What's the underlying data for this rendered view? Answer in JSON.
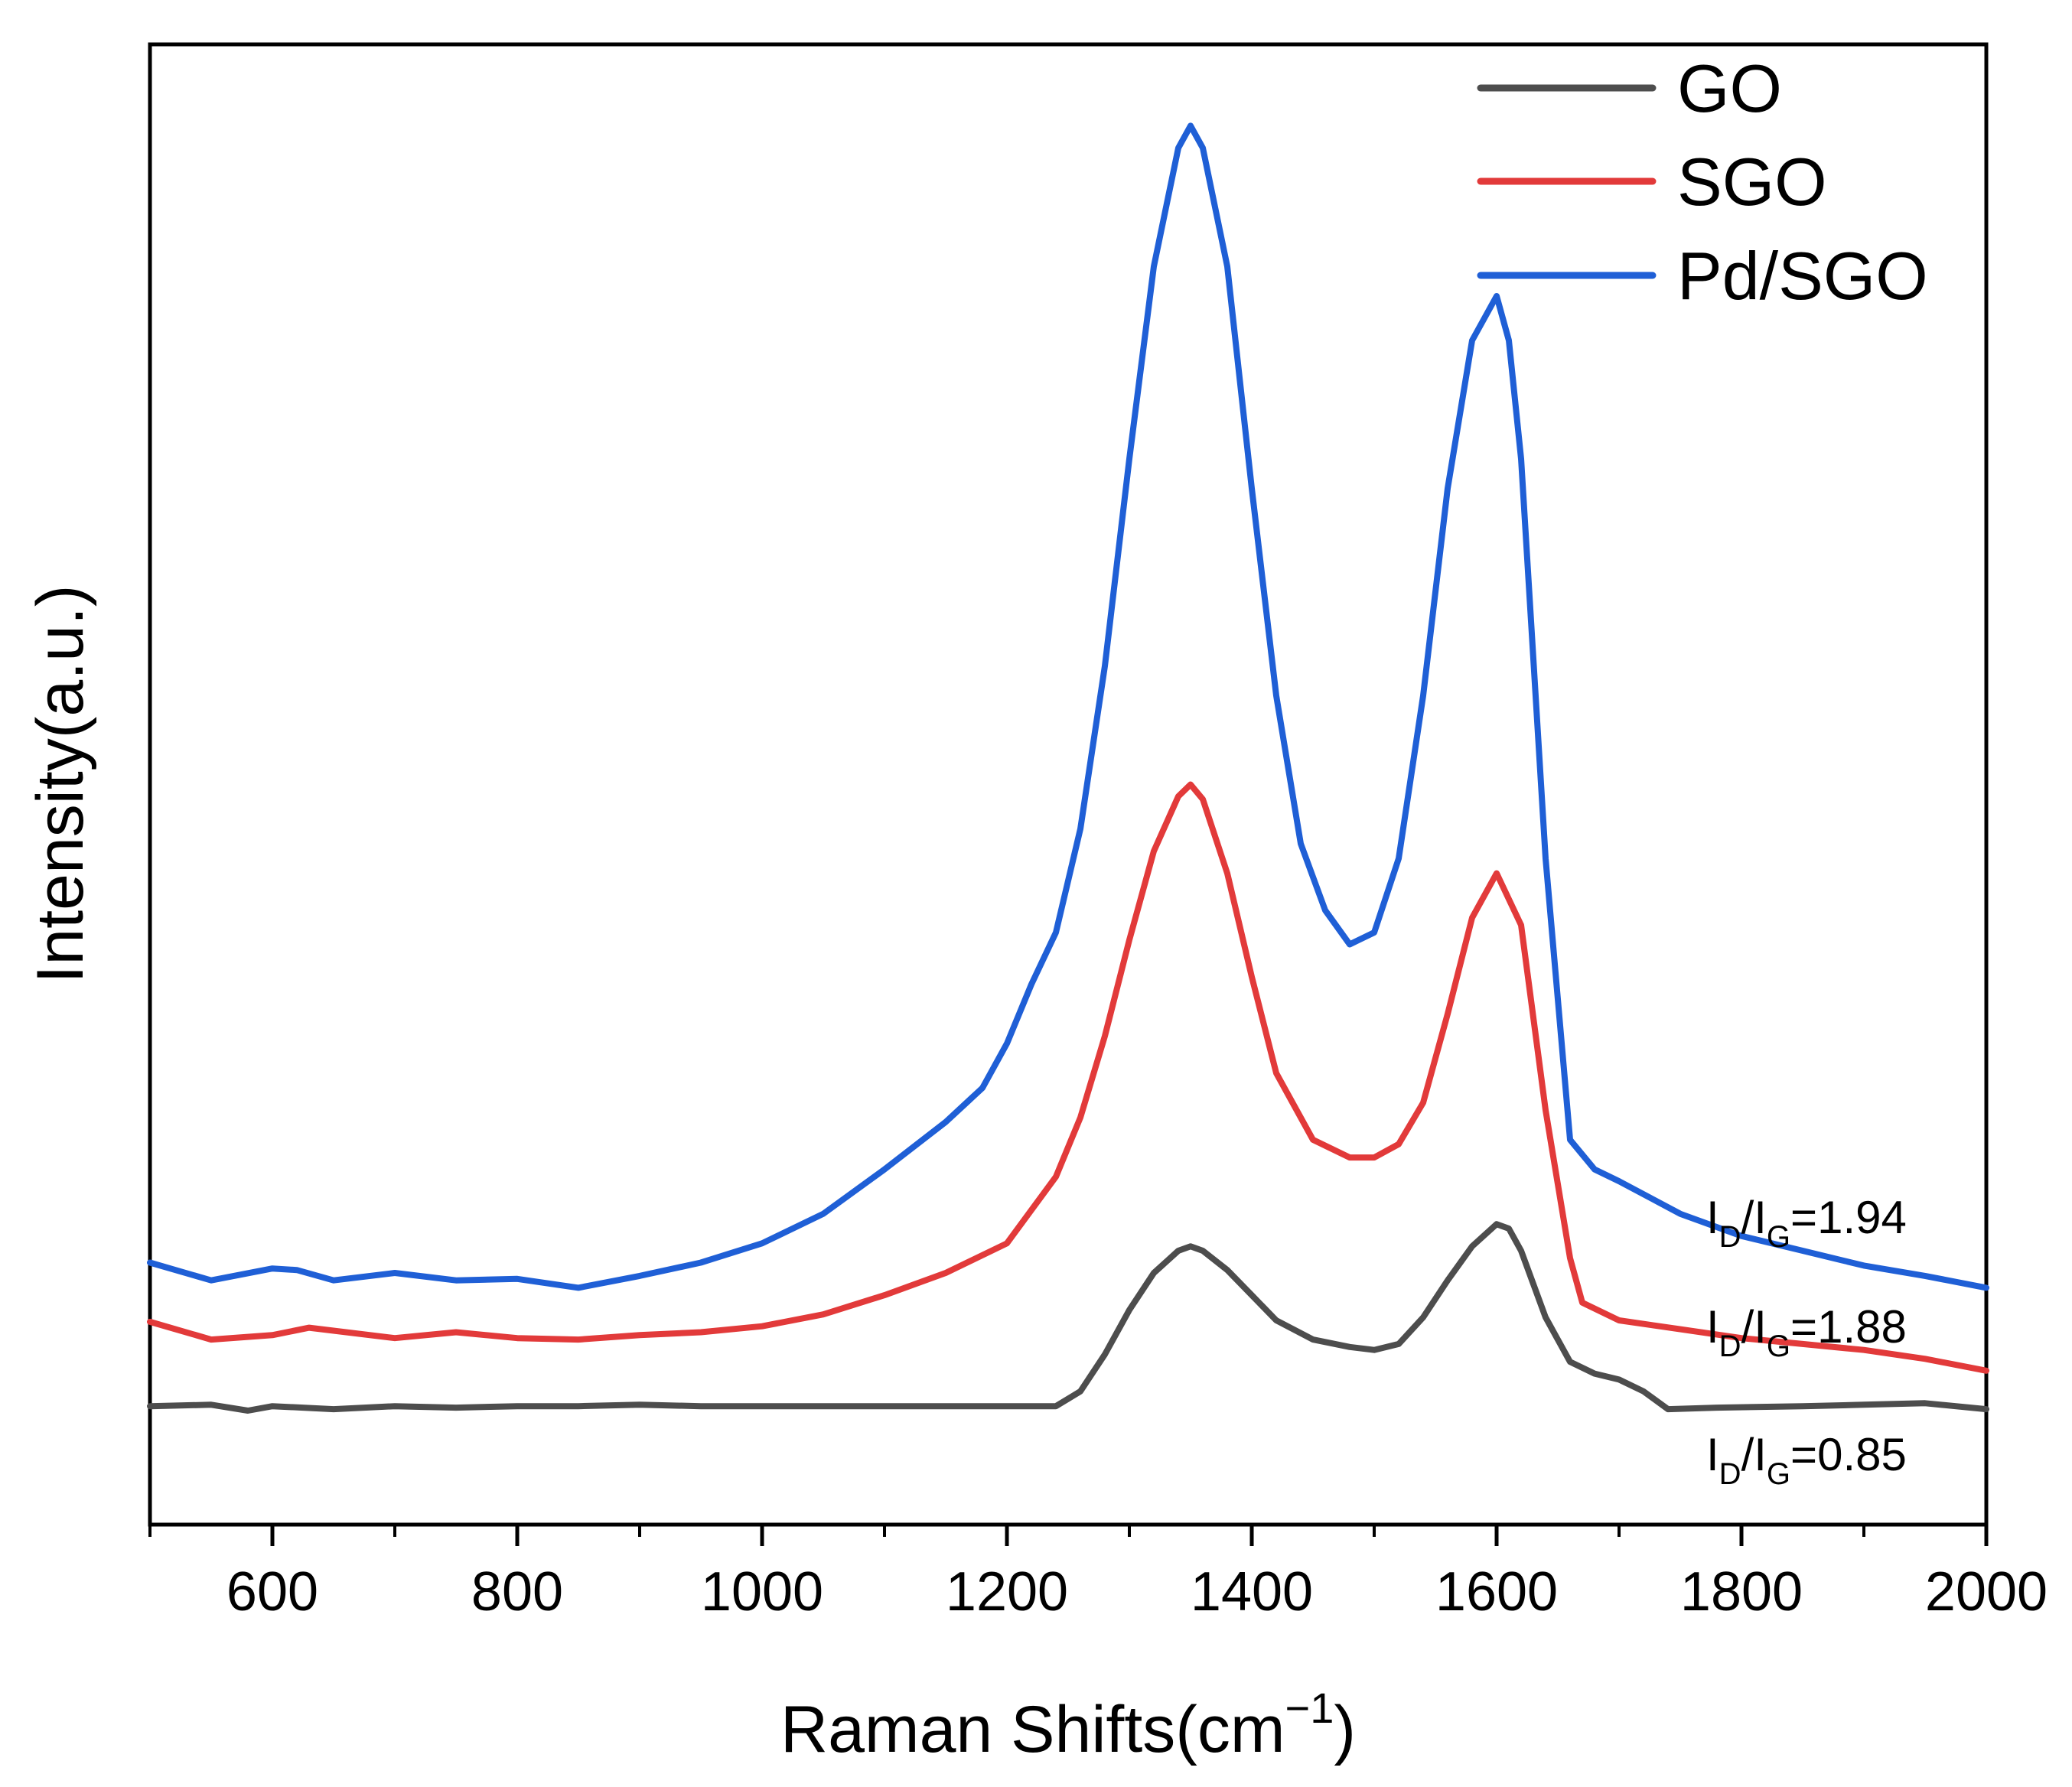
{
  "chart_data": {
    "type": "line",
    "title": "",
    "xlabel": "Raman Shifts(cm",
    "xlabel_unit_superscript": "−1",
    "xlabel_close": ")",
    "ylabel": "Intensity(a.u.)",
    "xlim": [
      500,
      2000
    ],
    "ylim": [
      0,
      1
    ],
    "x_ticks": [
      600,
      800,
      1000,
      1200,
      1400,
      1600,
      1800,
      2000
    ],
    "x_minor_ticks": [
      500,
      700,
      900,
      1100,
      1300,
      1500,
      1700,
      1900
    ],
    "y_ticks": [],
    "legend_position": "top-right",
    "series": [
      {
        "name": "GO",
        "color": "#4d4d4d",
        "ratio_label": {
          "I": "I",
          "D": "D",
          "slash": "/",
          "G": "G",
          "value": "=0.85"
        },
        "x": [
          500,
          550,
          580,
          600,
          650,
          700,
          750,
          800,
          850,
          900,
          950,
          1000,
          1050,
          1100,
          1150,
          1200,
          1240,
          1260,
          1280,
          1300,
          1320,
          1340,
          1350,
          1360,
          1380,
          1400,
          1420,
          1450,
          1480,
          1500,
          1520,
          1540,
          1560,
          1580,
          1600,
          1610,
          1620,
          1640,
          1660,
          1680,
          1700,
          1720,
          1740,
          1780,
          1850,
          1900,
          1950,
          2000
        ],
        "y": [
          0.08,
          0.081,
          0.077,
          0.08,
          0.078,
          0.08,
          0.079,
          0.08,
          0.08,
          0.081,
          0.08,
          0.08,
          0.08,
          0.08,
          0.08,
          0.08,
          0.08,
          0.09,
          0.115,
          0.145,
          0.17,
          0.185,
          0.188,
          0.185,
          0.172,
          0.155,
          0.138,
          0.125,
          0.12,
          0.118,
          0.122,
          0.14,
          0.165,
          0.188,
          0.203,
          0.2,
          0.185,
          0.14,
          0.11,
          0.102,
          0.098,
          0.09,
          0.078,
          0.079,
          0.08,
          0.081,
          0.082,
          0.078
        ]
      },
      {
        "name": "SGO",
        "color": "#e23a3a",
        "ratio_label": {
          "I": "I",
          "D": "D",
          "slash": "/",
          "G": "G",
          "value": "=1.88"
        },
        "x": [
          500,
          550,
          600,
          630,
          700,
          750,
          800,
          850,
          900,
          950,
          1000,
          1050,
          1100,
          1150,
          1200,
          1240,
          1260,
          1280,
          1300,
          1320,
          1340,
          1350,
          1360,
          1380,
          1400,
          1420,
          1450,
          1480,
          1500,
          1520,
          1540,
          1560,
          1580,
          1600,
          1620,
          1640,
          1660,
          1670,
          1700,
          1750,
          1800,
          1850,
          1900,
          1950,
          2000
        ],
        "y": [
          0.137,
          0.125,
          0.128,
          0.133,
          0.126,
          0.13,
          0.126,
          0.125,
          0.128,
          0.13,
          0.134,
          0.142,
          0.155,
          0.17,
          0.19,
          0.235,
          0.275,
          0.33,
          0.395,
          0.455,
          0.492,
          0.5,
          0.49,
          0.44,
          0.37,
          0.305,
          0.26,
          0.248,
          0.248,
          0.257,
          0.285,
          0.345,
          0.41,
          0.44,
          0.405,
          0.28,
          0.18,
          0.15,
          0.138,
          0.132,
          0.126,
          0.122,
          0.118,
          0.112,
          0.104
        ]
      },
      {
        "name": "Pd/SGO",
        "color": "#1f5fd6",
        "ratio_label": {
          "I": "I",
          "D": "D",
          "slash": "/",
          "G": "G",
          "value": "=1.94"
        },
        "x": [
          500,
          550,
          600,
          620,
          650,
          700,
          750,
          800,
          850,
          900,
          950,
          1000,
          1050,
          1100,
          1150,
          1180,
          1200,
          1220,
          1240,
          1260,
          1280,
          1300,
          1320,
          1340,
          1350,
          1360,
          1380,
          1400,
          1420,
          1440,
          1460,
          1480,
          1500,
          1520,
          1540,
          1560,
          1580,
          1600,
          1610,
          1620,
          1640,
          1660,
          1680,
          1700,
          1750,
          1800,
          1850,
          1900,
          1950,
          2000
        ],
        "y": [
          0.177,
          0.165,
          0.173,
          0.172,
          0.165,
          0.17,
          0.165,
          0.166,
          0.16,
          0.168,
          0.177,
          0.19,
          0.21,
          0.24,
          0.272,
          0.295,
          0.325,
          0.365,
          0.4,
          0.47,
          0.58,
          0.72,
          0.85,
          0.93,
          0.945,
          0.93,
          0.85,
          0.7,
          0.56,
          0.46,
          0.415,
          0.392,
          0.4,
          0.45,
          0.56,
          0.7,
          0.8,
          0.83,
          0.8,
          0.72,
          0.45,
          0.26,
          0.24,
          0.232,
          0.21,
          0.195,
          0.185,
          0.175,
          0.168,
          0.16
        ]
      }
    ]
  }
}
